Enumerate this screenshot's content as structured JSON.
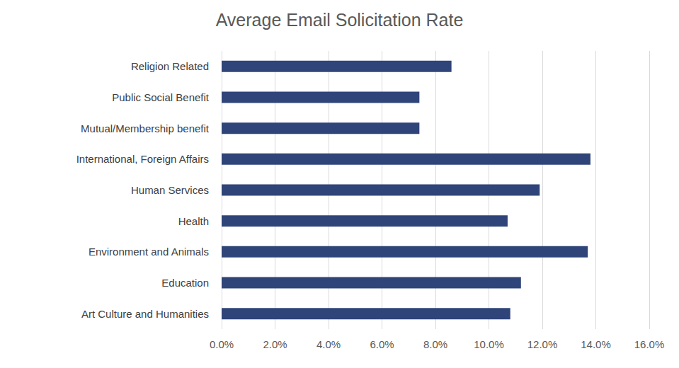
{
  "chart_data": {
    "type": "bar",
    "title": "Average Email Solicitation Rate",
    "orientation": "horizontal",
    "categories": [
      "Religion Related",
      "Public Social Benefit",
      "Mutual/Membership benefit",
      "International, Foreign Affairs",
      "Human Services",
      "Health",
      "Environment and Animals",
      "Education",
      "Art Culture and Humanities"
    ],
    "values": [
      8.6,
      7.4,
      7.4,
      13.8,
      11.9,
      10.7,
      13.7,
      11.2,
      10.8
    ],
    "color": "#2f4478",
    "xlim": [
      0,
      16
    ],
    "xticks": [
      {
        "value": 0,
        "label": "0.0%"
      },
      {
        "value": 2,
        "label": "2.0%"
      },
      {
        "value": 4,
        "label": "4.0%"
      },
      {
        "value": 6,
        "label": "6.0%"
      },
      {
        "value": 8,
        "label": "8.0%"
      },
      {
        "value": 10,
        "label": "10.0%"
      },
      {
        "value": 12,
        "label": "12.0%"
      },
      {
        "value": 14,
        "label": "14.0%"
      },
      {
        "value": 16,
        "label": "16.0%"
      }
    ],
    "grid": true
  }
}
